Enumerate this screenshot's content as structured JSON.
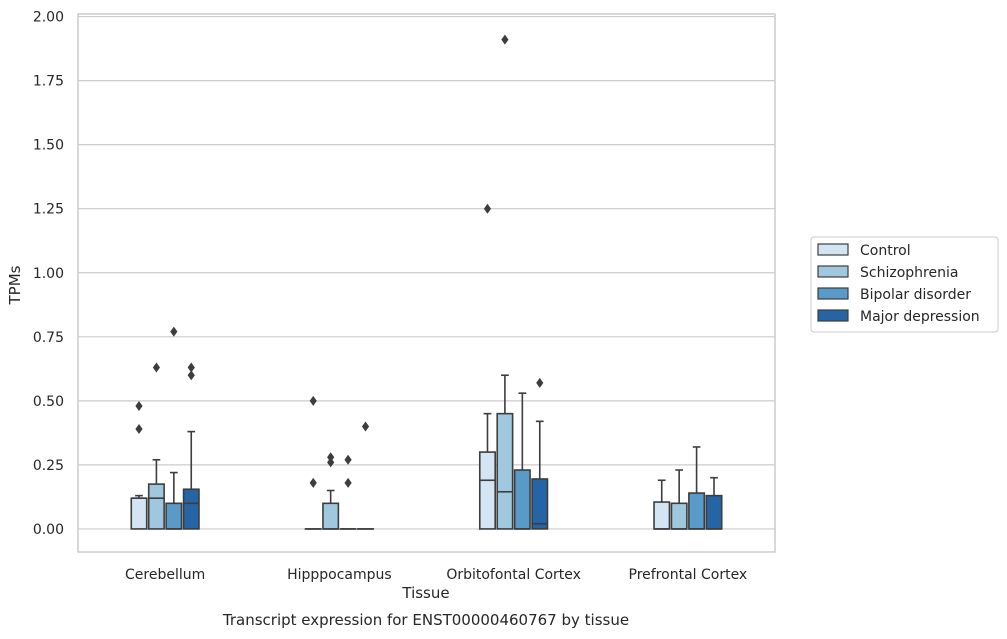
{
  "chart_data": {
    "type": "box",
    "title": "",
    "xlabel": "Tissue",
    "ylabel": "TPMs",
    "caption": "Transcript expression for ENST00000460767 by tissue",
    "ylim": [
      -0.09,
      2.01
    ],
    "yticks": [
      "0.00",
      "0.25",
      "0.50",
      "0.75",
      "1.00",
      "1.25",
      "1.50",
      "1.75",
      "2.00"
    ],
    "grid": true,
    "legend_position": "right",
    "categories": [
      "Cerebellum",
      "Hipppocampus",
      "Orbitofontal Cortex",
      "Prefrontal Cortex"
    ],
    "series": [
      {
        "name": "Control",
        "color": "#d3e4f3",
        "boxes": [
          {
            "q1": 0,
            "median": 0.12,
            "q3": 0.12,
            "whisker_low": 0,
            "whisker_high": 0.13,
            "outliers": [
              0.39,
              0.48
            ]
          },
          {
            "q1": 0,
            "median": 0,
            "q3": 0,
            "whisker_low": 0,
            "whisker_high": 0,
            "outliers": [
              0.18,
              0.5
            ]
          },
          {
            "q1": 0,
            "median": 0.19,
            "q3": 0.3,
            "whisker_low": 0,
            "whisker_high": 0.45,
            "outliers": [
              1.25
            ]
          },
          {
            "q1": 0,
            "median": 0,
            "q3": 0.105,
            "whisker_low": 0,
            "whisker_high": 0.19,
            "outliers": []
          }
        ]
      },
      {
        "name": "Schizophrenia",
        "color": "#9fc7de",
        "boxes": [
          {
            "q1": 0,
            "median": 0.12,
            "q3": 0.175,
            "whisker_low": 0,
            "whisker_high": 0.27,
            "outliers": [
              0.63
            ]
          },
          {
            "q1": 0,
            "median": 0,
            "q3": 0.1,
            "whisker_low": 0,
            "whisker_high": 0.15,
            "outliers": [
              0.26,
              0.28
            ]
          },
          {
            "q1": 0,
            "median": 0.145,
            "q3": 0.45,
            "whisker_low": 0,
            "whisker_high": 0.6,
            "outliers": [
              1.91
            ]
          },
          {
            "q1": 0,
            "median": 0,
            "q3": 0.1,
            "whisker_low": 0,
            "whisker_high": 0.23,
            "outliers": []
          }
        ]
      },
      {
        "name": "Bipolar disorder",
        "color": "#5a9ac8",
        "boxes": [
          {
            "q1": 0,
            "median": 0,
            "q3": 0.1,
            "whisker_low": 0,
            "whisker_high": 0.22,
            "outliers": [
              0.77
            ]
          },
          {
            "q1": 0,
            "median": 0,
            "q3": 0,
            "whisker_low": 0,
            "whisker_high": 0,
            "outliers": [
              0.18,
              0.27
            ]
          },
          {
            "q1": 0,
            "median": 0,
            "q3": 0.23,
            "whisker_low": 0,
            "whisker_high": 0.53,
            "outliers": []
          },
          {
            "q1": 0,
            "median": 0,
            "q3": 0.14,
            "whisker_low": 0,
            "whisker_high": 0.32,
            "outliers": []
          }
        ]
      },
      {
        "name": "Major depression",
        "color": "#2565a6",
        "boxes": [
          {
            "q1": 0,
            "median": 0.1,
            "q3": 0.155,
            "whisker_low": 0,
            "whisker_high": 0.38,
            "outliers": [
              0.6,
              0.63
            ]
          },
          {
            "q1": 0,
            "median": 0,
            "q3": 0,
            "whisker_low": 0,
            "whisker_high": 0,
            "outliers": [
              0.4
            ]
          },
          {
            "q1": 0,
            "median": 0.02,
            "q3": 0.195,
            "whisker_low": 0,
            "whisker_high": 0.42,
            "outliers": [
              0.57
            ]
          },
          {
            "q1": 0,
            "median": 0,
            "q3": 0.13,
            "whisker_low": 0,
            "whisker_high": 0.2,
            "outliers": []
          }
        ]
      }
    ]
  }
}
